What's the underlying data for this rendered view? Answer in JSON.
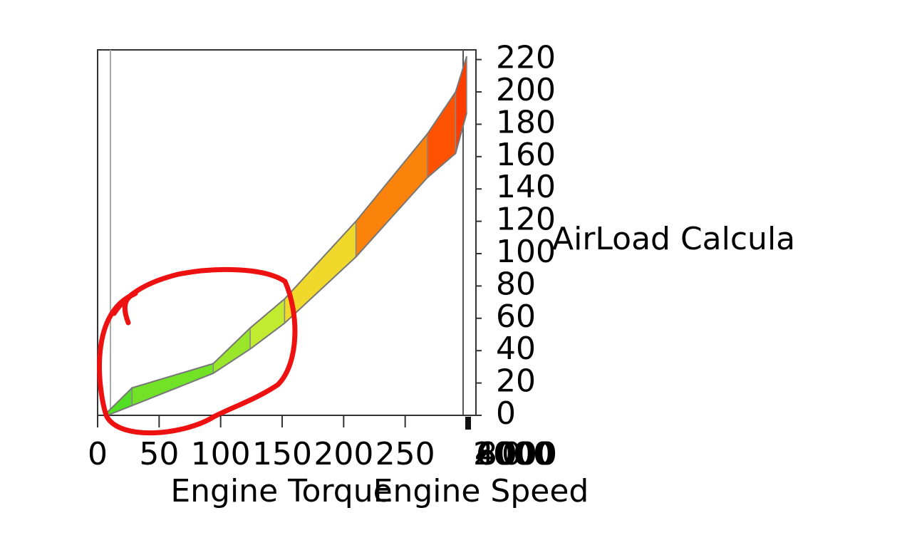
{
  "chart_data": {
    "type": "surface",
    "x_label": "Engine Torque",
    "y_label": "Engine Speed",
    "z_label": "AirLoad Calcula",
    "x": [
      8,
      28,
      94,
      124,
      152,
      210,
      268,
      291,
      300
    ],
    "series": [
      {
        "values": [
          2,
          17,
          32,
          54,
          72,
          120,
          174,
          200,
          222
        ]
      },
      {
        "values": [
          0,
          6,
          26,
          41,
          57,
          98,
          147,
          162,
          187
        ]
      }
    ],
    "colors": [
      "#44dd22",
      "#eeee33",
      "#ff6600",
      "#ff1a00"
    ],
    "xlim": [
      0,
      300
    ],
    "xticks": [
      0,
      50,
      100,
      150,
      200,
      250
    ],
    "yticks": [
      0,
      2000,
      4000,
      6000,
      8000
    ],
    "zlim": [
      0,
      226
    ],
    "zticks": [
      0,
      20,
      40,
      60,
      80,
      100,
      120,
      140,
      160,
      180,
      200,
      220
    ]
  }
}
